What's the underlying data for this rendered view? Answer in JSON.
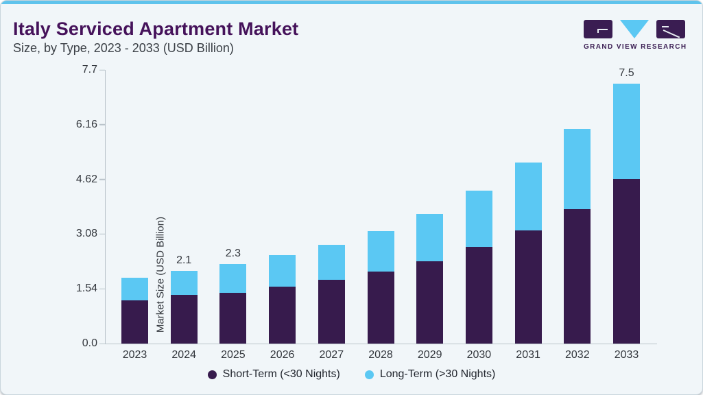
{
  "header": {
    "title": "Italy Serviced Apartment Market",
    "subtitle": "Size, by Type, 2023 - 2033 (USD Billion)"
  },
  "logo": {
    "text": "GRAND VIEW RESEARCH"
  },
  "colors": {
    "accent_bar": "#5FC3EC",
    "card_background": "#F1F6F9",
    "card_border": "#C9D5DC",
    "title": "#45125A",
    "text": "#33373D",
    "axis_line": "#B9C3CA",
    "short_term": "#371B4D",
    "long_term": "#5BC8F3"
  },
  "chart_data": {
    "type": "bar",
    "stacked": true,
    "title": "Italy Serviced Apartment Market Size, by Type, 2023 - 2033 (USD Billion)",
    "categories": [
      "2023",
      "2024",
      "2025",
      "2026",
      "2027",
      "2028",
      "2029",
      "2030",
      "2031",
      "2032",
      "2033"
    ],
    "series": [
      {
        "name": "Short-Term (<30 Nights)",
        "color": "#371B4D",
        "values": [
          1.25,
          1.4,
          1.47,
          1.64,
          1.83,
          2.07,
          2.37,
          2.79,
          3.27,
          3.87,
          4.75
        ]
      },
      {
        "name": "Long-Term (>30 Nights)",
        "color": "#5BC8F3",
        "values": [
          0.65,
          0.7,
          0.83,
          0.91,
          1.01,
          1.18,
          1.37,
          1.61,
          1.94,
          2.32,
          2.75
        ]
      }
    ],
    "totals": [
      1.9,
      2.1,
      2.3,
      2.55,
      2.84,
      3.25,
      3.74,
      4.4,
      5.21,
      6.19,
      7.5
    ],
    "bar_labels": [
      "",
      "2.1",
      "2.3",
      "",
      "",
      "",
      "",
      "",
      "",
      "",
      "7.5"
    ],
    "xlabel": "",
    "ylabel": "Market Size (USD Billion)",
    "yticks": [
      "0.0",
      "1.54",
      "3.08",
      "4.62",
      "6.16",
      "7.7"
    ],
    "ylim": [
      0,
      7.7
    ],
    "grid": false,
    "legend_position": "bottom"
  }
}
